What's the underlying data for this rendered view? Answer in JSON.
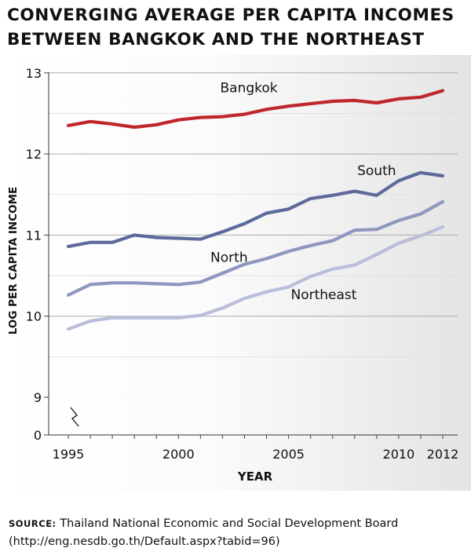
{
  "title": {
    "line1": "CONVERGING AVERAGE PER CAPITA INCOMES",
    "line2": "BETWEEN BANGKOK AND THE NORTHEAST"
  },
  "source": {
    "label": "SOURCE:",
    "text": "Thailand National Economic and Social Development Board",
    "url": "(http://eng.nesdb.go.th/Default.aspx?tabid=96)"
  },
  "chart_data": {
    "type": "line",
    "xlabel": "YEAR",
    "ylabel": "LOG PER CAPITA INCOME",
    "x": [
      1995,
      1996,
      1997,
      1998,
      1999,
      2000,
      2001,
      2002,
      2003,
      2004,
      2005,
      2006,
      2007,
      2008,
      2009,
      2010,
      2011,
      2012
    ],
    "x_ticks": [
      1995,
      2000,
      2005,
      2010,
      2012
    ],
    "y_ticks": [
      0,
      9,
      10,
      11,
      12,
      13
    ],
    "ylim": [
      9,
      13
    ],
    "axis_break": true,
    "grid": true,
    "series": [
      {
        "name": "Bangkok",
        "color": "#c0272d",
        "values": [
          12.35,
          12.4,
          12.37,
          12.33,
          12.36,
          12.42,
          12.45,
          12.46,
          12.49,
          12.55,
          12.59,
          12.62,
          12.65,
          12.66,
          12.63,
          12.68,
          12.7,
          12.78
        ]
      },
      {
        "name": "South",
        "color": "#5d6a9b",
        "values": [
          10.86,
          10.91,
          10.91,
          11.0,
          10.97,
          10.96,
          10.95,
          11.04,
          11.14,
          11.27,
          11.32,
          11.45,
          11.49,
          11.54,
          11.49,
          11.67,
          11.77,
          11.73
        ]
      },
      {
        "name": "North",
        "color": "#8e98bf",
        "values": [
          10.26,
          10.39,
          10.41,
          10.41,
          10.4,
          10.39,
          10.42,
          10.53,
          10.64,
          10.71,
          10.8,
          10.87,
          10.93,
          11.06,
          11.07,
          11.18,
          11.26,
          11.41
        ]
      },
      {
        "name": "Northeast",
        "color": "#b9bedb",
        "values": [
          9.84,
          9.94,
          9.98,
          9.98,
          9.98,
          9.98,
          10.01,
          10.1,
          10.22,
          10.3,
          10.36,
          10.49,
          10.58,
          10.63,
          10.76,
          10.9,
          10.99,
          11.1
        ]
      }
    ]
  }
}
